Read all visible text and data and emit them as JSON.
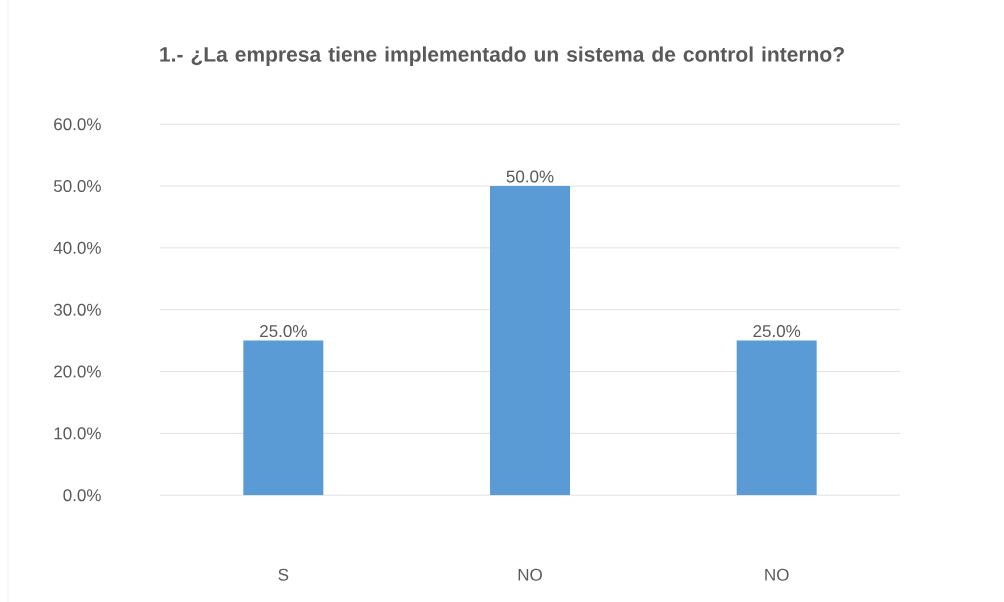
{
  "chart_data": {
    "type": "bar",
    "title": "1.- ¿La empresa tiene implementado un sistema de control interno?",
    "categories": [
      "S",
      "NO",
      "NO"
    ],
    "values": [
      25,
      50,
      25
    ],
    "color": "#5b9bd5",
    "value_labels": [
      "25.0%",
      "50.0%",
      "25.0%"
    ],
    "ylim": [
      0,
      60
    ],
    "yticks": [
      {
        "value": 0,
        "label": "0.0%"
      },
      {
        "value": 10,
        "label": "10.0%"
      },
      {
        "value": 20,
        "label": "20.0%"
      },
      {
        "value": 30,
        "label": "30.0%"
      },
      {
        "value": 40,
        "label": "40.0%"
      },
      {
        "value": 50,
        "label": "50.0%"
      },
      {
        "value": 60,
        "label": "60.0%"
      }
    ],
    "grid": "y"
  }
}
